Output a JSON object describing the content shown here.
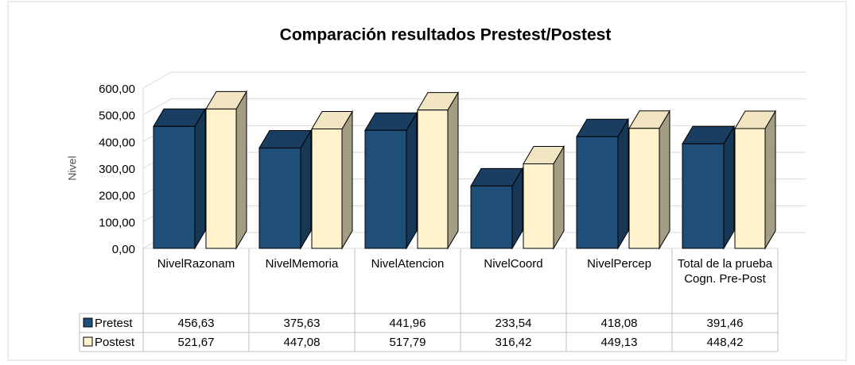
{
  "chart_data": {
    "type": "bar3d",
    "title": "Comparación resultados Prestest/Postest",
    "y_label": "Nivel",
    "categories": [
      "NivelRazonam",
      "NivelMemoria",
      "NivelAtencion",
      "NivelCoord",
      "NivelPercep",
      "Total de la prueba Cogn. Pre-Post"
    ],
    "series": [
      {
        "name": "Pretest",
        "color": "#1f4e79",
        "values": [
          456.63,
          375.63,
          441.96,
          233.54,
          418.08,
          391.46
        ],
        "value_labels": [
          "456,63",
          "375,63",
          "441,96",
          "233,54",
          "418,08",
          "391,46"
        ]
      },
      {
        "name": "Postest",
        "color": "#fff2cc",
        "values": [
          521.67,
          447.08,
          517.79,
          316.42,
          449.13,
          448.42
        ],
        "value_labels": [
          "521,67",
          "447,08",
          "517,79",
          "316,42",
          "449,13",
          "448,42"
        ]
      }
    ],
    "ylim": [
      0,
      600
    ],
    "yticks": [
      {
        "value": 0,
        "label": "0,00"
      },
      {
        "value": 100,
        "label": "100,00"
      },
      {
        "value": 200,
        "label": "200,00"
      },
      {
        "value": 300,
        "label": "300,00"
      },
      {
        "value": 400,
        "label": "400,00"
      },
      {
        "value": 500,
        "label": "500,00"
      },
      {
        "value": 600,
        "label": "600,00"
      }
    ],
    "grid": true,
    "legend": "table"
  }
}
